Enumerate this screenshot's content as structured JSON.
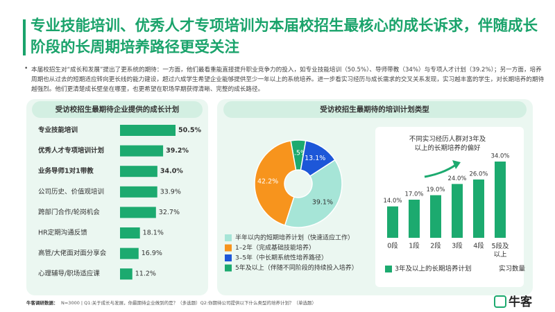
{
  "header": {
    "title": "专业技能培训、优秀人才专项培训为本届校招生最核心的成长诉求，伴随成长阶段的长周期培养路径更受关注",
    "summary": "本届校招生对“成长和发展”提出了更系统的期待：一方面，他们最看重能直接提升职业竞争力的投入，如专业技能培训（50.5%）、导师带教（34%）与专项人才计划（39.2%）；另一方面，培养周期也从过去的短期适应转向更长线的能力建设，超过六成学生希望企业能够提供至少一年以上的系统培养。进一步看实习经历与成长需求的交叉关系发现，实习越丰富的学生，对长期培养的期待越强烈。他们更清楚成长壁垒在哪里，也更希望在职场早期获得清晰、完整的成长路径。"
  },
  "footer": {
    "source_label": "牛客调研数据：",
    "source": "N=3000 | Q1:关于成长与发展，你最期待企业做到的是？（多选题）Q2:你期待公司提供以下什么类型的培养计划？（单选题）",
    "logo": "牛客"
  },
  "chart_data": [
    {
      "type": "bar",
      "orientation": "horizontal",
      "title": "受访校招生最期待企业提供的成长计划",
      "categories": [
        "专业技能培训",
        "优秀人才专项培训计划",
        "业务导师1对1带教",
        "公司历史、价值观培训",
        "跨部门合作/轮岗机会",
        "HR定期沟通反馈",
        "高管/大佬面对面分享会",
        "心理辅导/职场适应课"
      ],
      "values": [
        50.5,
        39.2,
        34.0,
        33.9,
        32.7,
        18.1,
        16.9,
        11.2
      ],
      "value_labels": [
        "50.5%",
        "39.2%",
        "34.0%",
        "33.9%",
        "32.7%",
        "18.1%",
        "16.9%",
        "11.2%"
      ],
      "color": "#1caa6f"
    },
    {
      "type": "pie",
      "title": "受访校招生最期待的培训计划类型",
      "categories": [
        "半年以内的短期培养计划（快速适应工作）",
        "1–2年（完成基础技能培养）",
        "3–5年（中长期系统性培养路径）",
        "5年及以上（伴随不同阶段的持续投入培养）"
      ],
      "values": [
        39.1,
        42.2,
        13.1,
        5.5
      ],
      "value_labels": [
        "39.1%",
        "42.2%",
        "13.1%",
        "5.5%"
      ],
      "colors": [
        "#a6e5d7",
        "#f7941d",
        "#1d57d8",
        "#1caa6f"
      ]
    },
    {
      "type": "bar",
      "orientation": "vertical",
      "annotation": [
        "不同实习经历人群对3年及",
        "以上的长期培养的偏好"
      ],
      "categories": [
        "0段",
        "1段",
        "2段",
        "3段",
        "4段",
        "5段及以上"
      ],
      "series": [
        {
          "name": "3年及以上的长期培养计划",
          "color": "#1caa6f",
          "values": [
            14.0,
            17.0,
            19.0,
            24.0,
            26.0,
            34.0
          ],
          "value_labels": [
            "14.0%",
            "17.0%",
            "19.0%",
            "24.0%",
            "26.0%",
            "34.0%"
          ]
        }
      ],
      "xlabel": "实习数量"
    }
  ]
}
